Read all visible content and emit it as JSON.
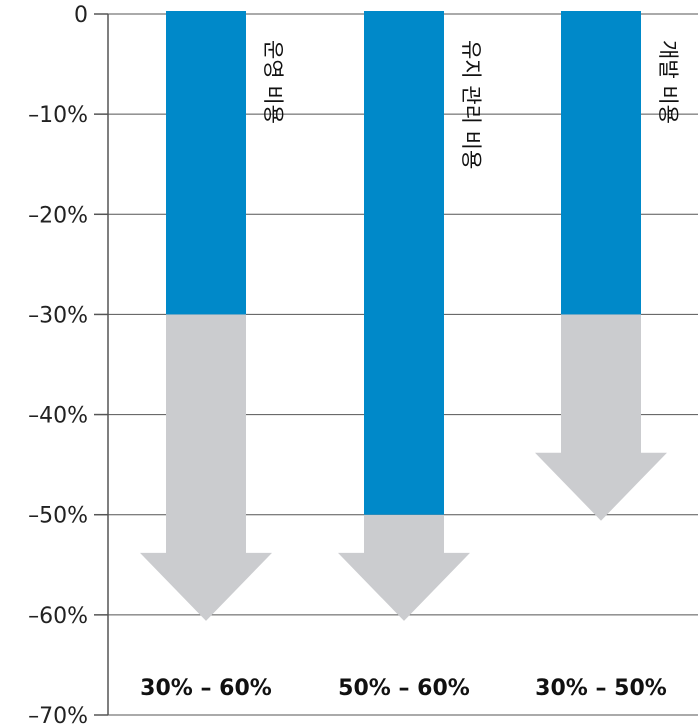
{
  "chart_data": {
    "type": "bar",
    "categories": [
      "운영 비용",
      "유지 관리 비용",
      "개발 비용"
    ],
    "series": [
      {
        "values": [
          -30,
          -50,
          -30
        ]
      }
    ],
    "savings_range": [
      [
        -30,
        -60
      ],
      [
        -50,
        -60
      ],
      [
        -30,
        -50
      ]
    ],
    "range_labels": [
      "30% – 60%",
      "50% – 60%",
      "30% – 50%"
    ],
    "y_ticks": [
      "0",
      "–10%",
      "–20%",
      "–30%",
      "–40%",
      "–50%",
      "–60%",
      "–70%"
    ],
    "y_tick_values": [
      0,
      -10,
      -20,
      -30,
      -40,
      -50,
      -60,
      -70
    ],
    "ylim": [
      -70,
      0
    ],
    "grid": true,
    "colors": {
      "bar": "#0089c9",
      "arrow": "#cbcccf",
      "grid": "#555555"
    }
  }
}
